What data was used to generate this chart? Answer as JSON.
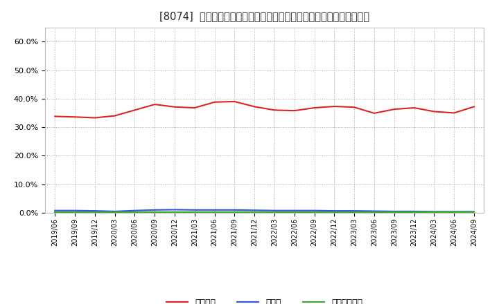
{
  "title": "[8074]  自己資本、のれん、繰延税金資産の総資産に対する比率の推移",
  "x_labels": [
    "2019/06",
    "2019/09",
    "2019/12",
    "2020/03",
    "2020/06",
    "2020/09",
    "2020/12",
    "2021/03",
    "2021/06",
    "2021/09",
    "2021/12",
    "2022/03",
    "2022/06",
    "2022/09",
    "2022/12",
    "2023/03",
    "2023/06",
    "2023/09",
    "2023/12",
    "2024/03",
    "2024/06",
    "2024/09"
  ],
  "equity_ratio": [
    0.338,
    0.336,
    0.333,
    0.34,
    0.36,
    0.38,
    0.371,
    0.368,
    0.388,
    0.39,
    0.372,
    0.36,
    0.358,
    0.368,
    0.373,
    0.37,
    0.349,
    0.363,
    0.368,
    0.355,
    0.35,
    0.372
  ],
  "goodwill_ratio": [
    0.008,
    0.008,
    0.007,
    0.005,
    0.008,
    0.01,
    0.011,
    0.01,
    0.01,
    0.01,
    0.009,
    0.008,
    0.008,
    0.008,
    0.007,
    0.007,
    0.006,
    0.005,
    0.005,
    0.004,
    0.004,
    0.004
  ],
  "deferred_tax_ratio": [
    0.003,
    0.003,
    0.003,
    0.003,
    0.003,
    0.003,
    0.003,
    0.003,
    0.003,
    0.003,
    0.003,
    0.003,
    0.003,
    0.003,
    0.003,
    0.003,
    0.003,
    0.003,
    0.003,
    0.003,
    0.003,
    0.003
  ],
  "equity_color": "#dd2222",
  "goodwill_color": "#3355dd",
  "deferred_color": "#33aa33",
  "background_color": "#ffffff",
  "plot_bg_color": "#ffffff",
  "grid_color": "#aaaaaa",
  "ylim": [
    0.0,
    0.65
  ],
  "yticks": [
    0.0,
    0.1,
    0.2,
    0.3,
    0.4,
    0.5,
    0.6
  ],
  "legend_labels": [
    "自己資本",
    "のれん",
    "繰延税金資産"
  ]
}
